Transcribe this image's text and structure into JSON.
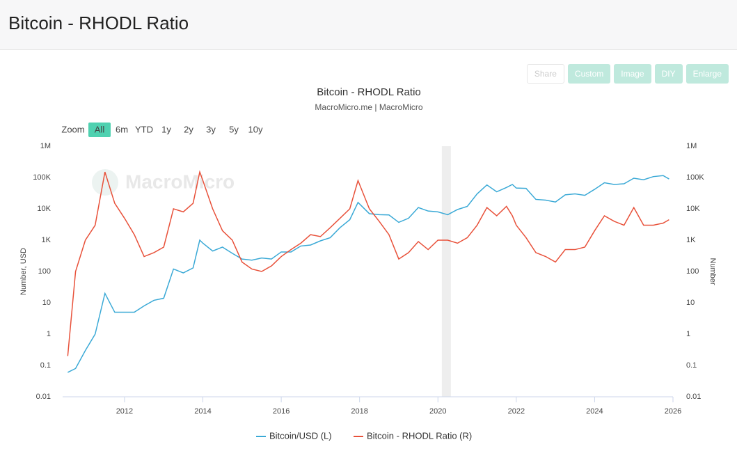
{
  "header": {
    "title": "Bitcoin - RHODL Ratio"
  },
  "toolbar": [
    "Share",
    "Custom",
    "Image",
    "DIY",
    "Enlarge"
  ],
  "zoom": {
    "label": "Zoom",
    "options": [
      "All",
      "6m",
      "YTD",
      "1y",
      "2y",
      "3y",
      "5y",
      "10y"
    ]
  },
  "chart_data": {
    "type": "line",
    "title": "Bitcoin - RHODL Ratio",
    "subtitle": "MacroMicro.me | MacroMicro",
    "watermark": "MacroMicro",
    "ylabel": "Number, USD",
    "y2label": "Number",
    "log_scale": true,
    "grid": false,
    "x": [
      2010.55,
      2010.75,
      2011,
      2011.25,
      2011.5,
      2011.75,
      2012,
      2012.25,
      2012.5,
      2012.75,
      2013,
      2013.25,
      2013.5,
      2013.75,
      2013.92,
      2014,
      2014.25,
      2014.5,
      2014.75,
      2015,
      2015.25,
      2015.5,
      2015.75,
      2016,
      2016.25,
      2016.5,
      2016.75,
      2017,
      2017.25,
      2017.5,
      2017.75,
      2017.96,
      2018.25,
      2018.5,
      2018.75,
      2019,
      2019.25,
      2019.5,
      2019.75,
      2020,
      2020.25,
      2020.5,
      2020.75,
      2021,
      2021.25,
      2021.5,
      2021.75,
      2021.9,
      2022,
      2022.25,
      2022.5,
      2022.75,
      2023,
      2023.25,
      2023.5,
      2023.75,
      2024,
      2024.25,
      2024.5,
      2024.75,
      2025,
      2025.25,
      2025.5,
      2025.75,
      2025.9
    ],
    "series": [
      {
        "name": "Bitcoin/USD (L)",
        "color": "#3aa9d6",
        "values": [
          0.06,
          0.08,
          0.3,
          1,
          20,
          5,
          5,
          5,
          8,
          12,
          14,
          120,
          90,
          130,
          1000,
          800,
          450,
          600,
          380,
          250,
          230,
          270,
          250,
          420,
          420,
          650,
          700,
          950,
          1200,
          2500,
          4500,
          16000,
          7000,
          6500,
          6400,
          3700,
          5000,
          11000,
          8500,
          8000,
          6500,
          9500,
          12000,
          30000,
          58000,
          35000,
          48000,
          60000,
          46000,
          45000,
          20000,
          19000,
          16500,
          28000,
          30000,
          27000,
          42000,
          68000,
          60000,
          63000,
          95000,
          85000,
          107000,
          115000,
          90000
        ]
      },
      {
        "name": "Bitcoin - RHODL Ratio (R)",
        "color": "#e8513a",
        "axis": "y2",
        "values": [
          0.2,
          100,
          1000,
          3000,
          150000,
          15000,
          5000,
          1500,
          300,
          400,
          600,
          10000,
          8000,
          15000,
          150000,
          80000,
          10000,
          2000,
          1000,
          200,
          120,
          100,
          150,
          300,
          500,
          800,
          1500,
          1300,
          2500,
          5000,
          10000,
          80000,
          10000,
          4000,
          1500,
          250,
          400,
          900,
          500,
          1000,
          1000,
          800,
          1200,
          3000,
          11000,
          6000,
          12000,
          6000,
          3000,
          1200,
          400,
          300,
          200,
          500,
          500,
          600,
          2000,
          6000,
          4000,
          3000,
          11000,
          3000,
          3000,
          3500,
          4500
        ]
      }
    ],
    "shaded_ranges": [
      [
        2020.1,
        2020.33
      ]
    ],
    "xlim": [
      2010.42,
      2026
    ],
    "xticks": [
      2012,
      2014,
      2016,
      2018,
      2020,
      2022,
      2024,
      2026
    ],
    "ylim": [
      0.01,
      1000000
    ],
    "yticks": [
      0.01,
      0.1,
      1,
      10,
      100,
      {
        "value": 1000,
        "label": "1K"
      },
      {
        "value": 10000,
        "label": "10K"
      },
      {
        "value": 100000,
        "label": "100K"
      },
      {
        "value": 1000000,
        "label": "1M"
      }
    ],
    "y2lim": [
      0.01,
      1000000
    ],
    "y2ticks": [
      0.01,
      0.1,
      1,
      10,
      100,
      {
        "value": 1000,
        "label": "1K"
      },
      {
        "value": 10000,
        "label": "10K"
      },
      {
        "value": 100000,
        "label": "100K"
      },
      {
        "value": 1000000,
        "label": "1M"
      }
    ]
  }
}
